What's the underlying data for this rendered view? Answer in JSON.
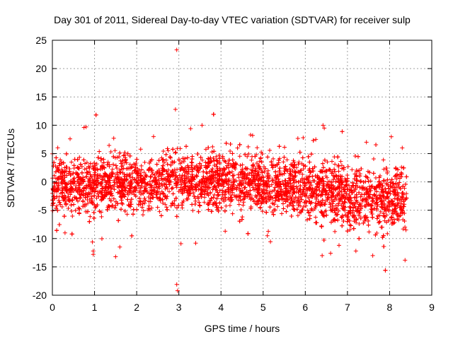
{
  "chart_data": {
    "type": "scatter",
    "title": "Day 301 of 2011, Sidereal Day-to-day VTEC variation (SDTVAR) for receiver sulp",
    "xlabel": "GPS time / hours",
    "ylabel": "SDTVAR / TECUs",
    "xlim": [
      0,
      9
    ],
    "ylim": [
      -20,
      25
    ],
    "x_ticks": [
      "0",
      "1",
      "2",
      "3",
      "4",
      "5",
      "6",
      "7",
      "8",
      "9"
    ],
    "y_ticks": [
      "-20",
      "-15",
      "-10",
      "-5",
      "0",
      "5",
      "10",
      "15",
      "20",
      "25"
    ],
    "grid": true,
    "marker": "plus",
    "series_color": "#ff0000",
    "data_x_range": [
      0,
      8.4
    ],
    "band": [
      {
        "x": 0.0,
        "mean": -0.5,
        "spread": 2.6
      },
      {
        "x": 1.0,
        "mean": -0.3,
        "spread": 2.6
      },
      {
        "x": 2.0,
        "mean": 0.0,
        "spread": 2.4
      },
      {
        "x": 3.0,
        "mean": 0.2,
        "spread": 2.5
      },
      {
        "x": 4.0,
        "mean": 0.3,
        "spread": 2.4
      },
      {
        "x": 5.0,
        "mean": -0.2,
        "spread": 2.4
      },
      {
        "x": 6.0,
        "mean": -1.0,
        "spread": 2.6
      },
      {
        "x": 7.0,
        "mean": -2.5,
        "spread": 2.8
      },
      {
        "x": 8.0,
        "mean": -3.0,
        "spread": 2.8
      },
      {
        "x": 8.4,
        "mean": -3.0,
        "spread": 2.8
      }
    ],
    "notable_points": [
      {
        "x": 2.95,
        "y": 23.3
      },
      {
        "x": 2.92,
        "y": 12.8
      },
      {
        "x": 2.95,
        "y": -18.1
      },
      {
        "x": 2.97,
        "y": -19.2
      },
      {
        "x": 0.97,
        "y": -12.8
      },
      {
        "x": 0.97,
        "y": -12.2
      },
      {
        "x": 0.95,
        "y": -10.6
      },
      {
        "x": 0.8,
        "y": 9.7
      },
      {
        "x": 0.75,
        "y": 9.6
      },
      {
        "x": 3.55,
        "y": 10.0
      },
      {
        "x": 6.42,
        "y": 10.0
      },
      {
        "x": 6.45,
        "y": 9.5
      },
      {
        "x": 1.6,
        "y": -11.5
      },
      {
        "x": 1.5,
        "y": -13.2
      },
      {
        "x": 6.4,
        "y": -13.0
      },
      {
        "x": 6.6,
        "y": -12.6
      },
      {
        "x": 7.6,
        "y": -13.0
      },
      {
        "x": 8.3,
        "y": 6.0
      },
      {
        "x": 7.45,
        "y": 7.0
      },
      {
        "x": 3.28,
        "y": 9.4
      },
      {
        "x": 4.75,
        "y": 8.2
      },
      {
        "x": 4.7,
        "y": 8.3
      },
      {
        "x": 5.95,
        "y": 7.8
      },
      {
        "x": 6.25,
        "y": 7.5
      },
      {
        "x": 0.42,
        "y": 7.6
      },
      {
        "x": 2.4,
        "y": 8.0
      },
      {
        "x": 3.8,
        "y": 6.2
      },
      {
        "x": 4.1,
        "y": -8.7
      },
      {
        "x": 5.1,
        "y": -9.5
      },
      {
        "x": 3.05,
        "y": -10.9
      },
      {
        "x": 3.4,
        "y": -10.8
      },
      {
        "x": 0.3,
        "y": -9.0
      },
      {
        "x": 7.2,
        "y": -12.2
      },
      {
        "x": 6.8,
        "y": -11.2
      }
    ]
  }
}
